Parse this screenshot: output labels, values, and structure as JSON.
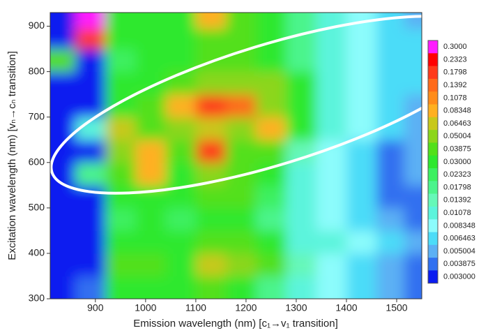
{
  "chart_data": {
    "type": "contour",
    "x_label": "Emission wavelength  (nm)   [c₁→v₁ transition]",
    "y_label": "Excitation wavelength  (nm)   [vₙ→cₙ transition]",
    "xlim": [
      810,
      1550
    ],
    "ylim": [
      300,
      930
    ],
    "xticks": [
      900,
      1000,
      1100,
      1200,
      1300,
      1400,
      1500
    ],
    "yticks": [
      300,
      400,
      500,
      600,
      700,
      800,
      900
    ],
    "x": [
      830,
      890,
      950,
      1010,
      1070,
      1130,
      1190,
      1250,
      1310,
      1370,
      1430,
      1490,
      1540
    ],
    "y": [
      325,
      375,
      425,
      475,
      525,
      575,
      625,
      675,
      725,
      775,
      825,
      875,
      915
    ],
    "z": [
      [
        0.003,
        0.004,
        0.03,
        0.03,
        0.03,
        0.04,
        0.03,
        0.02,
        0.012,
        0.01,
        0.008,
        0.006,
        0.005
      ],
      [
        0.003,
        0.003,
        0.04,
        0.04,
        0.03,
        0.08,
        0.06,
        0.04,
        0.015,
        0.01,
        0.008,
        0.006,
        0.005
      ],
      [
        0.003,
        0.003,
        0.03,
        0.03,
        0.03,
        0.04,
        0.04,
        0.03,
        0.012,
        0.012,
        0.009,
        0.007,
        0.006
      ],
      [
        0.003,
        0.003,
        0.025,
        0.03,
        0.025,
        0.035,
        0.03,
        0.02,
        0.012,
        0.01,
        0.008,
        0.006,
        0.005
      ],
      [
        0.003,
        0.003,
        0.03,
        0.03,
        0.03,
        0.04,
        0.04,
        0.025,
        0.012,
        0.01,
        0.007,
        0.004,
        0.005
      ],
      [
        0.003,
        0.02,
        0.04,
        0.1,
        0.035,
        0.06,
        0.04,
        0.03,
        0.013,
        0.01,
        0.007,
        0.004,
        0.006
      ],
      [
        0.003,
        0.003,
        0.06,
        0.1,
        0.04,
        0.18,
        0.05,
        0.05,
        0.014,
        0.01,
        0.008,
        0.005,
        0.006
      ],
      [
        0.003,
        0.012,
        0.08,
        0.05,
        0.06,
        0.08,
        0.06,
        0.1,
        0.03,
        0.012,
        0.009,
        0.007,
        0.006
      ],
      [
        0.003,
        0.003,
        0.03,
        0.04,
        0.1,
        0.18,
        0.15,
        0.06,
        0.03,
        0.012,
        0.01,
        0.008,
        0.006
      ],
      [
        0.003,
        0.003,
        0.03,
        0.035,
        0.04,
        0.06,
        0.06,
        0.06,
        0.03,
        0.012,
        0.01,
        0.008,
        0.007
      ],
      [
        0.05,
        0.003,
        0.025,
        0.03,
        0.03,
        0.04,
        0.04,
        0.03,
        0.02,
        0.012,
        0.01,
        0.008,
        0.007
      ],
      [
        0.003,
        0.2,
        0.03,
        0.035,
        0.03,
        0.05,
        0.04,
        0.03,
        0.02,
        0.012,
        0.01,
        0.008,
        0.007
      ],
      [
        0.003,
        0.3,
        0.03,
        0.03,
        0.03,
        0.1,
        0.04,
        0.03,
        0.02,
        0.012,
        0.01,
        0.008,
        0.006
      ]
    ],
    "levels": [
      {
        "value": 0.3,
        "label": "0.3000",
        "color": "#ff1cff"
      },
      {
        "value": 0.2323,
        "label": "0.2323",
        "color": "#ff0000"
      },
      {
        "value": 0.1798,
        "label": "0.1798",
        "color": "#ff3a1a"
      },
      {
        "value": 0.1392,
        "label": "0.1392",
        "color": "#ff6a1a"
      },
      {
        "value": 0.1078,
        "label": "0.1078",
        "color": "#ff8c1a"
      },
      {
        "value": 0.08348,
        "label": "0.08348",
        "color": "#ffb020"
      },
      {
        "value": 0.06463,
        "label": "0.06463",
        "color": "#c8c81a"
      },
      {
        "value": 0.05004,
        "label": "0.05004",
        "color": "#8cd61a"
      },
      {
        "value": 0.03875,
        "label": "0.03875",
        "color": "#52e01a"
      },
      {
        "value": 0.03,
        "label": "0.03000",
        "color": "#2ee82e"
      },
      {
        "value": 0.02323,
        "label": "0.02323",
        "color": "#3cf060"
      },
      {
        "value": 0.01798,
        "label": "0.01798",
        "color": "#4cf48c"
      },
      {
        "value": 0.01392,
        "label": "0.01392",
        "color": "#66f8b8"
      },
      {
        "value": 0.01078,
        "label": "0.01078",
        "color": "#5cf4dc"
      },
      {
        "value": 0.008348,
        "label": "0.008348",
        "color": "#8cfcfc"
      },
      {
        "value": 0.006463,
        "label": "0.006463",
        "color": "#4cdcf8"
      },
      {
        "value": 0.005004,
        "label": "0.005004",
        "color": "#5cb0f4"
      },
      {
        "value": 0.003875,
        "label": "0.003875",
        "color": "#3070f0"
      },
      {
        "value": 0.003,
        "label": "0.003000",
        "color": "#0a1cf0"
      }
    ]
  }
}
